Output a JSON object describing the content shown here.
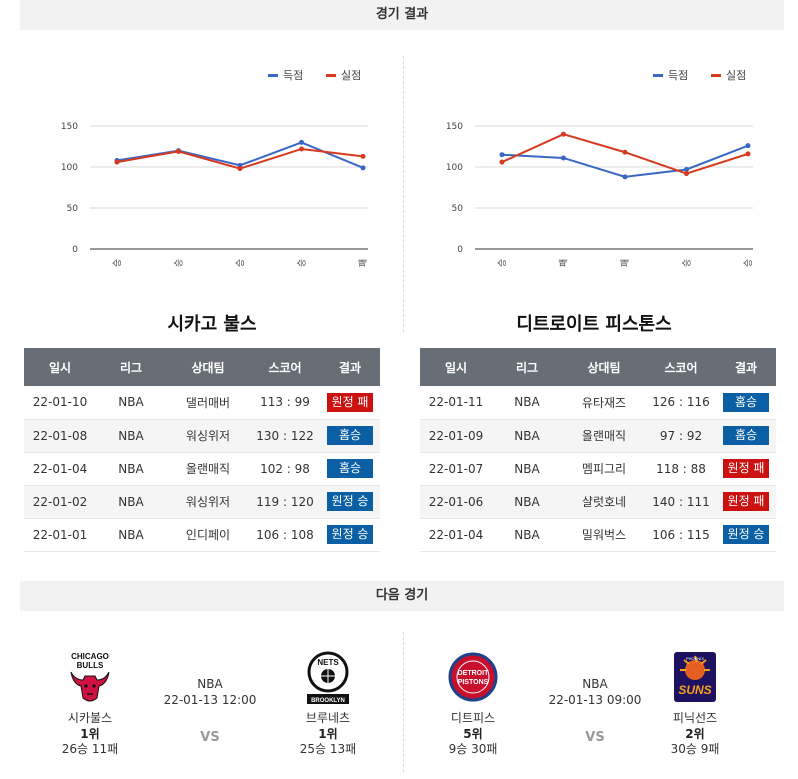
{
  "sections": {
    "results_title": "경기 결과",
    "next_title": "다음 경기"
  },
  "legend": {
    "scored": "득점",
    "allowed": "실점"
  },
  "colors": {
    "scored": "#3a66c4",
    "allowed": "#d63a1f",
    "win_badge": "#0b5fa5",
    "loss_badge": "#cc1111",
    "header_bg": "#676e76"
  },
  "chart_data": [
    {
      "type": "line",
      "categories": [
        "승",
        "승",
        "승",
        "승",
        "패"
      ],
      "series": [
        {
          "name": "득점",
          "values": [
            108,
            120,
            102,
            130,
            99
          ]
        },
        {
          "name": "실점",
          "values": [
            106,
            119,
            98,
            122,
            113
          ]
        }
      ],
      "yticks": [
        "0",
        "50",
        "100",
        "150"
      ],
      "ylim": [
        0,
        150
      ],
      "grid": true,
      "legend_position": "top-right"
    },
    {
      "type": "line",
      "categories": [
        "승",
        "패",
        "패",
        "승",
        "승"
      ],
      "series": [
        {
          "name": "득점",
          "values": [
            115,
            111,
            88,
            97,
            126
          ]
        },
        {
          "name": "실점",
          "values": [
            106,
            140,
            118,
            92,
            116
          ]
        }
      ],
      "yticks": [
        "0",
        "50",
        "100",
        "150"
      ],
      "ylim": [
        0,
        150
      ],
      "grid": true,
      "legend_position": "top-right"
    }
  ],
  "table_headers": [
    "일시",
    "리그",
    "상대팀",
    "스코어",
    "결과"
  ],
  "left": {
    "team_name": "시카고 불스",
    "rows": [
      {
        "date": "22-01-10",
        "league": "NBA",
        "opponent": "댈러매버",
        "score": "113 : 99",
        "result": "원정 패",
        "win": false
      },
      {
        "date": "22-01-08",
        "league": "NBA",
        "opponent": "워싱위저",
        "score": "130 : 122",
        "result": "홈승",
        "win": true
      },
      {
        "date": "22-01-04",
        "league": "NBA",
        "opponent": "올랜매직",
        "score": "102 : 98",
        "result": "홈승",
        "win": true
      },
      {
        "date": "22-01-02",
        "league": "NBA",
        "opponent": "워싱위저",
        "score": "119 : 120",
        "result": "원정 승",
        "win": true
      },
      {
        "date": "22-01-01",
        "league": "NBA",
        "opponent": "인디페이",
        "score": "106 : 108",
        "result": "원정 승",
        "win": true
      }
    ]
  },
  "right": {
    "team_name": "디트로이트 피스톤스",
    "rows": [
      {
        "date": "22-01-11",
        "league": "NBA",
        "opponent": "유타재즈",
        "score": "126 : 116",
        "result": "홈승",
        "win": true
      },
      {
        "date": "22-01-09",
        "league": "NBA",
        "opponent": "올랜매직",
        "score": "97 : 92",
        "result": "홈승",
        "win": true
      },
      {
        "date": "22-01-07",
        "league": "NBA",
        "opponent": "멤피그리",
        "score": "118 : 88",
        "result": "원정 패",
        "win": false
      },
      {
        "date": "22-01-06",
        "league": "NBA",
        "opponent": "샬럿호네",
        "score": "140 : 111",
        "result": "원정 패",
        "win": false
      },
      {
        "date": "22-01-04",
        "league": "NBA",
        "opponent": "밀워벅스",
        "score": "106 : 115",
        "result": "원정 승",
        "win": true
      }
    ]
  },
  "next_games": [
    {
      "league": "NBA",
      "datetime": "22-01-13 12:00",
      "vs": "VS",
      "home": {
        "name": "시카불스",
        "rank": "1위",
        "record": "26승 11패",
        "logo_icon": "chicago-bulls-logo-icon",
        "logo_text_top": "CHICAGO",
        "logo_text_bottom": "BULLS"
      },
      "away": {
        "name": "브루네츠",
        "rank": "1위",
        "record": "25승 13패",
        "logo_icon": "brooklyn-nets-logo-icon",
        "logo_text_top": "NETS",
        "logo_text_bottom": "BROOKLYN"
      }
    },
    {
      "league": "NBA",
      "datetime": "22-01-13 09:00",
      "vs": "VS",
      "home": {
        "name": "디트피스",
        "rank": "5위",
        "record": "9승 30패",
        "logo_icon": "detroit-pistons-logo-icon",
        "logo_text_top": "DETROIT",
        "logo_text_bottom": "PISTONS"
      },
      "away": {
        "name": "피닉선즈",
        "rank": "2위",
        "record": "30승 9패",
        "logo_icon": "phoenix-suns-logo-icon",
        "logo_text_top": "PHOENIX",
        "logo_text_bottom": "SUNS"
      }
    }
  ]
}
